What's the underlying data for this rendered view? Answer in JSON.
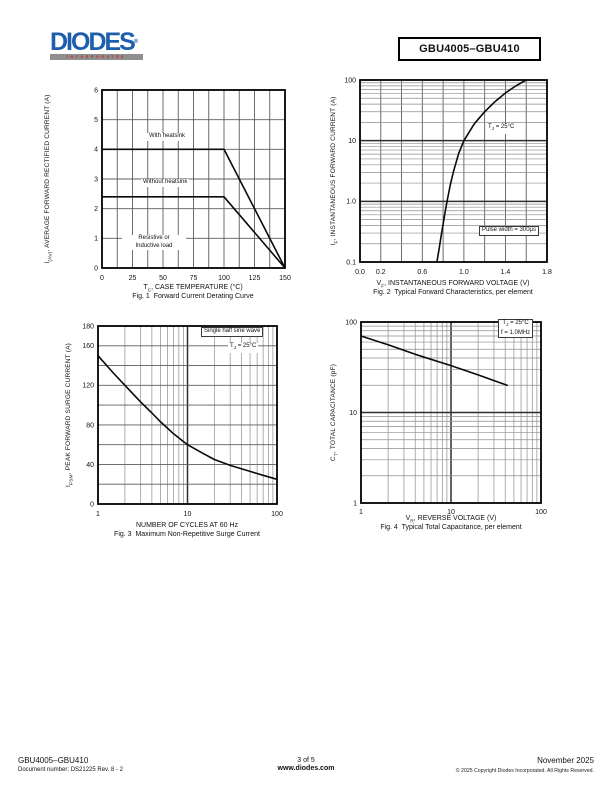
{
  "header": {
    "logo": {
      "text": "DIODES",
      "registered": "®",
      "sub": "INCORPORATED"
    },
    "part_number": "GBU4005–GBU410"
  },
  "footer": {
    "part_number": "GBU4005–GBU410",
    "document_number": "Document number: DS21225 Rev. 8 - 2",
    "page_indicator": "3 of 5",
    "website": "www.diodes.com",
    "date": "November 2025",
    "copyright": "© 2025 Copyright Diodes Incorporated. All Rights Reserved."
  },
  "chart_data": [
    {
      "id": "fig1",
      "type": "line",
      "caption": "Fig. 1  Forward Current Derating Curve",
      "xlabel": "TC, CASE TEMPERATURE (°C)",
      "xlabel_parts": {
        "pre": "T",
        "sub": "C",
        "post": ", CASE TEMPERATURE (°C)"
      },
      "ylabel": "I(AV), AVERAGE FORWARD RECTIFIED CURRENT (A)",
      "ylabel_parts": {
        "pre": "I",
        "sub": "(AV)",
        "post": ", AVERAGE FORWARD RECTIFIED CURRENT (A)"
      },
      "xscale": "linear",
      "yscale": "linear",
      "xlim": [
        0,
        150
      ],
      "ylim": [
        0,
        6
      ],
      "xgrid_step": 12.5,
      "ygrid_step": 1,
      "xticks": [
        {
          "v": 0,
          "label": "0"
        },
        {
          "v": 25,
          "label": "25"
        },
        {
          "v": 50,
          "label": "50"
        },
        {
          "v": 75,
          "label": "75"
        },
        {
          "v": 100,
          "label": "100"
        },
        {
          "v": 125,
          "label": "125"
        },
        {
          "v": 150,
          "label": "150"
        }
      ],
      "yticks": [
        {
          "v": 0,
          "label": "0"
        },
        {
          "v": 1,
          "label": "1"
        },
        {
          "v": 2,
          "label": "2"
        },
        {
          "v": 3,
          "label": "3"
        },
        {
          "v": 4,
          "label": "4"
        },
        {
          "v": 5,
          "label": "5"
        },
        {
          "v": 6,
          "label": "6"
        }
      ],
      "series": [
        {
          "name": "With heatsink",
          "points": [
            [
              0,
              4
            ],
            [
              100,
              4
            ],
            [
              150,
              0
            ]
          ]
        },
        {
          "name": "Without heatsink",
          "points": [
            [
              0,
              2.4
            ],
            [
              100,
              2.4
            ],
            [
              150,
              0
            ]
          ]
        }
      ],
      "annotations": [
        {
          "text": "With heatsink"
        },
        {
          "text": "Without heatsink"
        },
        {
          "line1": "Resistive or",
          "line2": "Inductive load"
        }
      ]
    },
    {
      "id": "fig2",
      "type": "line",
      "caption": "Fig. 2  Typical Forward Characteristics, per element",
      "xlabel": "VF, INSTANTANEOUS FORWARD VOLTAGE (V)",
      "xlabel_parts": {
        "pre": "V",
        "sub": "F",
        "post": ", INSTANTANEOUS FORWARD VOLTAGE (V)"
      },
      "ylabel": "IF, INSTANTANEOUS FORWARD CURRENT (A)",
      "ylabel_parts": {
        "pre": "I",
        "sub": "F",
        "post": ", INSTANTANEOUS FORWARD CURRENT (A)"
      },
      "xscale": "linear",
      "yscale": "log",
      "xlim": [
        0,
        1.8
      ],
      "ylim": [
        0.1,
        100
      ],
      "xgrid_step": 0.2,
      "xticks": [
        {
          "v": 0,
          "label": "0.0"
        },
        {
          "v": 0.2,
          "label": "0.2"
        },
        {
          "v": 0.6,
          "label": "0.6"
        },
        {
          "v": 1.0,
          "label": "1.0"
        },
        {
          "v": 1.4,
          "label": "1.4"
        },
        {
          "v": 1.8,
          "label": "1.8"
        }
      ],
      "yticks": [
        {
          "v": 100,
          "label": "100"
        },
        {
          "v": 10,
          "label": "10"
        },
        {
          "v": 1,
          "label": "1.0"
        },
        {
          "v": 0.1,
          "label": "0.1"
        }
      ],
      "series": [
        {
          "name": "TJ = 25°C",
          "points": [
            [
              0.74,
              0.1
            ],
            [
              0.76,
              0.16
            ],
            [
              0.78,
              0.26
            ],
            [
              0.8,
              0.42
            ],
            [
              0.82,
              0.68
            ],
            [
              0.84,
              1.05
            ],
            [
              0.87,
              1.9
            ],
            [
              0.9,
              3.1
            ],
            [
              0.95,
              6.2
            ],
            [
              1.0,
              10
            ],
            [
              1.1,
              19
            ],
            [
              1.2,
              30
            ],
            [
              1.3,
              44
            ],
            [
              1.4,
              61
            ],
            [
              1.5,
              80
            ],
            [
              1.6,
              100
            ]
          ]
        }
      ],
      "annotations": [
        {
          "pre": "T",
          "sub": "J",
          "post": " = 25°C"
        },
        {
          "text": "Pulse width = 300µs"
        }
      ]
    },
    {
      "id": "fig3",
      "type": "line",
      "caption": "Fig. 3  Maximum Non-Repetitive Surge Current",
      "xlabel": "NUMBER OF CYCLES AT 60 Hz",
      "ylabel": "IFSM, PEAK FORWARD SURGE CURRENT (A)",
      "ylabel_parts": {
        "pre": "I",
        "sub": "FSM",
        "post": ", PEAK FORWARD SURGE CURRENT (A)"
      },
      "xscale": "log",
      "yscale": "linear",
      "xlim": [
        1,
        100
      ],
      "ylim": [
        0,
        180
      ],
      "ygrid_step": 20,
      "xticks": [
        {
          "v": 1,
          "label": "1"
        },
        {
          "v": 10,
          "label": "10"
        },
        {
          "v": 100,
          "label": "100"
        }
      ],
      "yticks": [
        {
          "v": 0,
          "label": "0"
        },
        {
          "v": 40,
          "label": "40"
        },
        {
          "v": 80,
          "label": "80"
        },
        {
          "v": 120,
          "label": "120"
        },
        {
          "v": 160,
          "label": "160"
        },
        {
          "v": 180,
          "label": "180"
        }
      ],
      "series": [
        {
          "name": "Peak forward surge current",
          "points": [
            [
              1,
              150
            ],
            [
              1.5,
              132
            ],
            [
              2,
              120
            ],
            [
              3,
              103
            ],
            [
              4,
              92
            ],
            [
              5,
              83
            ],
            [
              7,
              71
            ],
            [
              10,
              60
            ],
            [
              15,
              51
            ],
            [
              20,
              45
            ],
            [
              30,
              39
            ],
            [
              50,
              33
            ],
            [
              70,
              29
            ],
            [
              100,
              25
            ]
          ]
        }
      ],
      "annotations": [
        {
          "text": "Single half sine wave"
        },
        {
          "pre": "T",
          "sub": "J",
          "post": " = 25°C"
        }
      ]
    },
    {
      "id": "fig4",
      "type": "line",
      "caption": "Fig. 4  Typical Total Capacitance, per element",
      "xlabel": "VR, REVERSE VOLTAGE (V)",
      "xlabel_parts": {
        "pre": "V",
        "sub": "R",
        "post": ", REVERSE VOLTAGE (V)"
      },
      "ylabel": "CT, TOTAL CAPACITANCE (pF)",
      "ylabel_parts": {
        "pre": "C",
        "sub": "T",
        "post": ", TOTAL CAPACITANCE (pF)"
      },
      "xscale": "log",
      "yscale": "log",
      "xlim": [
        1,
        100
      ],
      "ylim": [
        1,
        100
      ],
      "xticks": [
        {
          "v": 1,
          "label": "1"
        },
        {
          "v": 10,
          "label": "10"
        },
        {
          "v": 100,
          "label": "100"
        }
      ],
      "yticks": [
        {
          "v": 1,
          "label": "1"
        },
        {
          "v": 10,
          "label": "10"
        },
        {
          "v": 100,
          "label": "100"
        }
      ],
      "series": [
        {
          "name": "Total capacitance",
          "points": [
            [
              1,
              70
            ],
            [
              2,
              56
            ],
            [
              4,
              44
            ],
            [
              10,
              33
            ],
            [
              20,
              26
            ],
            [
              42,
              20
            ]
          ]
        }
      ],
      "annotations": [
        {
          "pre": "T",
          "sub": "J",
          "post": " = 25°C"
        },
        {
          "text": "f = 1.0MHz"
        }
      ]
    }
  ]
}
